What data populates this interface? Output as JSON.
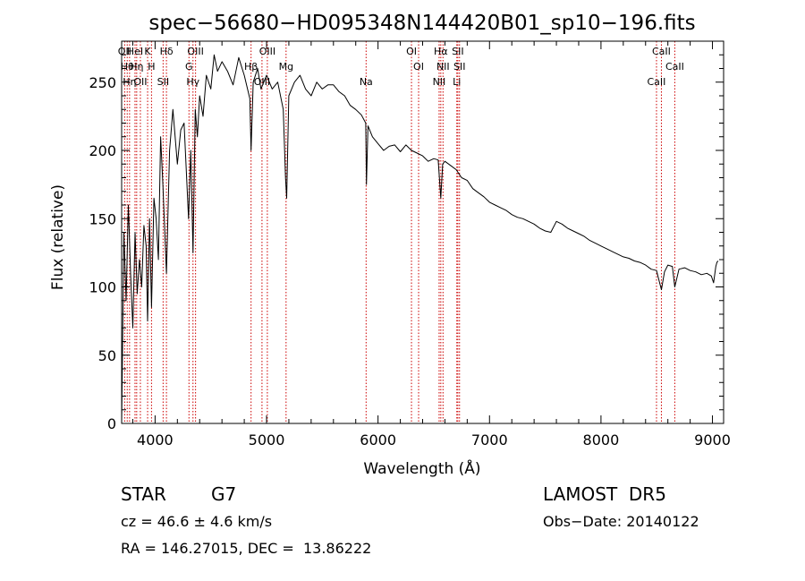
{
  "chart_data": {
    "type": "line",
    "title": "spec−56680−HD095348N144420B01_sp10−196.fits",
    "xlabel": "Wavelength (Å)",
    "ylabel": "Flux (relative)",
    "xlim": [
      3700,
      9100
    ],
    "ylim": [
      0,
      280
    ],
    "xticks": [
      4000,
      5000,
      6000,
      7000,
      8000,
      9000
    ],
    "yticks": [
      0,
      50,
      100,
      150,
      200,
      250
    ],
    "grid": false,
    "line_color": "#000000",
    "marker_color": "#cc0000",
    "spectrum": {
      "name": "",
      "x": [
        3700,
        3720,
        3740,
        3760,
        3780,
        3800,
        3820,
        3840,
        3860,
        3880,
        3900,
        3920,
        3933,
        3950,
        3968,
        3990,
        4010,
        4030,
        4050,
        4070,
        4102,
        4130,
        4160,
        4200,
        4230,
        4260,
        4300,
        4320,
        4340,
        4360,
        4380,
        4400,
        4430,
        4460,
        4500,
        4530,
        4560,
        4600,
        4650,
        4700,
        4750,
        4800,
        4850,
        4861,
        4880,
        4920,
        4950,
        5000,
        5050,
        5100,
        5150,
        5170,
        5180,
        5200,
        5250,
        5300,
        5350,
        5400,
        5450,
        5500,
        5550,
        5600,
        5650,
        5700,
        5750,
        5800,
        5850,
        5890,
        5896,
        5910,
        5950,
        6000,
        6050,
        6100,
        6150,
        6200,
        6250,
        6300,
        6350,
        6400,
        6450,
        6500,
        6540,
        6563,
        6580,
        6600,
        6650,
        6700,
        6750,
        6800,
        6850,
        6900,
        6950,
        7000,
        7050,
        7100,
        7150,
        7200,
        7250,
        7300,
        7350,
        7400,
        7450,
        7500,
        7550,
        7600,
        7650,
        7700,
        7750,
        7800,
        7850,
        7900,
        7950,
        8000,
        8050,
        8100,
        8150,
        8200,
        8250,
        8300,
        8350,
        8400,
        8450,
        8498,
        8520,
        8542,
        8570,
        8600,
        8640,
        8662,
        8700,
        8750,
        8800,
        8850,
        8900,
        8950,
        8990,
        9010,
        9030,
        9040,
        9050
      ],
      "y": [
        0,
        140,
        90,
        160,
        110,
        70,
        140,
        95,
        120,
        100,
        145,
        130,
        75,
        150,
        85,
        165,
        150,
        120,
        210,
        175,
        110,
        200,
        230,
        190,
        215,
        220,
        150,
        200,
        125,
        230,
        210,
        240,
        225,
        255,
        245,
        270,
        258,
        265,
        258,
        248,
        268,
        255,
        238,
        200,
        250,
        260,
        245,
        255,
        245,
        250,
        230,
        180,
        165,
        240,
        250,
        255,
        245,
        240,
        250,
        245,
        248,
        248,
        243,
        240,
        233,
        230,
        226,
        220,
        175,
        218,
        210,
        205,
        200,
        203,
        204,
        199,
        204,
        200,
        198,
        196,
        192,
        194,
        193,
        165,
        190,
        192,
        189,
        186,
        180,
        178,
        172,
        169,
        166,
        162,
        160,
        158,
        156,
        153,
        151,
        150,
        148,
        146,
        143,
        141,
        140,
        148,
        146,
        143,
        141,
        139,
        137,
        134,
        132,
        130,
        128,
        126,
        124,
        122,
        121,
        119,
        118,
        116,
        113,
        112,
        105,
        98,
        111,
        116,
        115,
        100,
        113,
        114,
        112,
        111,
        109,
        110,
        108,
        103,
        115,
        118,
        119
      ]
    },
    "lines": [
      {
        "wl": 3727,
        "label": "OII"
      },
      {
        "wl": 3750,
        "label": "Hθ"
      },
      {
        "wl": 3771,
        "label": "Hη"
      },
      {
        "wl": 3820,
        "label": "HeI"
      },
      {
        "wl": 3835,
        "label": "Hη"
      },
      {
        "wl": 3868,
        "label": "OII"
      },
      {
        "wl": 3933,
        "label": "K"
      },
      {
        "wl": 3968,
        "label": "H"
      },
      {
        "wl": 4072,
        "label": "SII"
      },
      {
        "wl": 4102,
        "label": "Hδ"
      },
      {
        "wl": 4304,
        "label": "G"
      },
      {
        "wl": 4340,
        "label": "Hγ"
      },
      {
        "wl": 4363,
        "label": "OIII"
      },
      {
        "wl": 4861,
        "label": "Hβ"
      },
      {
        "wl": 4959,
        "label": "OIII"
      },
      {
        "wl": 5007,
        "label": "OIII"
      },
      {
        "wl": 5175,
        "label": "Mg"
      },
      {
        "wl": 5893,
        "label": "Na"
      },
      {
        "wl": 6300,
        "label": "OI"
      },
      {
        "wl": 6364,
        "label": "OI"
      },
      {
        "wl": 6548,
        "label": "NII"
      },
      {
        "wl": 6563,
        "label": "Hα"
      },
      {
        "wl": 6583,
        "label": "NII"
      },
      {
        "wl": 6707,
        "label": "Li"
      },
      {
        "wl": 6716,
        "label": "SII"
      },
      {
        "wl": 6731,
        "label": "SII"
      },
      {
        "wl": 8498,
        "label": "CaII"
      },
      {
        "wl": 8542,
        "label": "CaII"
      },
      {
        "wl": 8662,
        "label": "CaII"
      }
    ]
  },
  "info": {
    "object_class": "STAR",
    "subclass": "G7",
    "cz": "cz = 46.6 ± 4.6 km/s",
    "coords": "RA = 146.27015, DEC =  13.86222",
    "survey": "LAMOST  DR5",
    "obs_date": "Obs−Date: 20140122"
  }
}
